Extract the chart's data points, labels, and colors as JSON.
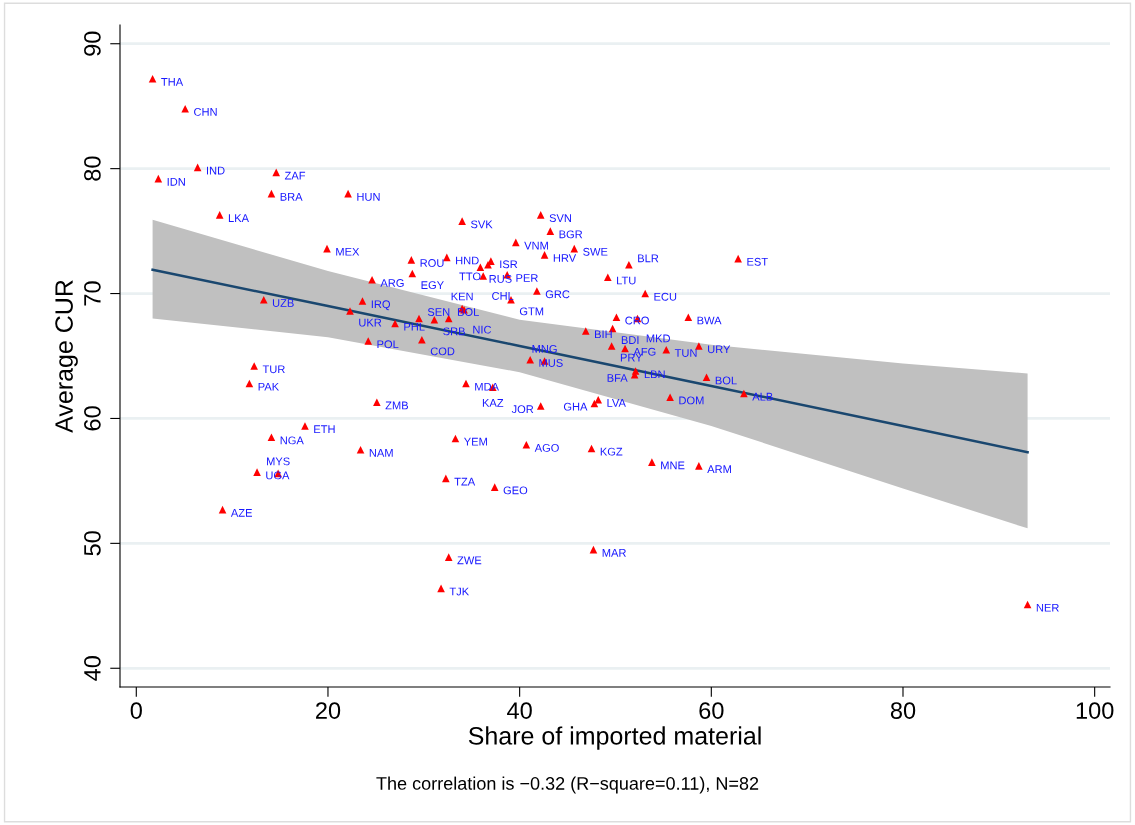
{
  "chart_data": {
    "type": "scatter",
    "xlabel": "Share of imported material",
    "ylabel": "Average CUR",
    "annotations": [
      "The correlation is −0.32 (R−square=0.11), N=82"
    ],
    "xlim": [
      -1.7,
      101.6
    ],
    "ylim": [
      38.5,
      91.5
    ],
    "xticks": [
      0,
      20,
      40,
      60,
      80,
      100
    ],
    "yticks": [
      40,
      50,
      60,
      70,
      80,
      90
    ],
    "grid": "y",
    "legend": false,
    "series": [
      {
        "marker": "triangle",
        "color": "#ff0000",
        "x": [
          1.7,
          5.1,
          6.4,
          2.3,
          14.6,
          14.1,
          22.1,
          8.7,
          19.9,
          28.7,
          32.4,
          28.8,
          24.6,
          34.0,
          42.2,
          43.2,
          39.6,
          42.6,
          45.7,
          37.0,
          36.7,
          35.9,
          36.2,
          38.7,
          41.8,
          39.1,
          49.2,
          51.4,
          62.8,
          53.1,
          50.1,
          52.3,
          57.6,
          46.9,
          49.7,
          49.6,
          51.0,
          55.3,
          58.7,
          41.1,
          42.6,
          52.1,
          52.0,
          59.5,
          63.4,
          55.7,
          48.2,
          47.8,
          42.2,
          40.7,
          47.5,
          53.8,
          58.7,
          23.6,
          22.3,
          27.0,
          29.5,
          31.1,
          32.6,
          34.0,
          34.2,
          24.2,
          29.8,
          34.4,
          37.2,
          25.1,
          12.3,
          11.8,
          17.6,
          14.1,
          23.4,
          33.3,
          12.6,
          14.8,
          32.3,
          37.4,
          9.0,
          32.6,
          31.8,
          47.7,
          93.0,
          13.3
        ],
        "values": [
          87.2,
          84.8,
          80.1,
          79.2,
          79.7,
          78.0,
          78.0,
          76.3,
          73.6,
          72.7,
          72.9,
          71.6,
          71.1,
          75.8,
          76.3,
          75.0,
          74.1,
          73.1,
          73.6,
          72.6,
          72.3,
          72.1,
          71.4,
          71.5,
          70.2,
          69.5,
          71.3,
          72.3,
          72.8,
          70.0,
          68.1,
          68.0,
          68.1,
          67.0,
          67.2,
          65.8,
          65.6,
          65.5,
          65.8,
          64.7,
          64.6,
          63.8,
          63.5,
          63.3,
          62.0,
          61.7,
          61.5,
          61.2,
          61.0,
          57.9,
          57.6,
          56.5,
          56.2,
          69.4,
          68.6,
          67.6,
          68.0,
          67.9,
          68.0,
          68.8,
          68.7,
          66.2,
          66.3,
          62.8,
          62.5,
          61.3,
          64.2,
          62.8,
          59.4,
          58.5,
          57.5,
          58.4,
          55.7,
          55.6,
          55.2,
          54.5,
          52.7,
          48.9,
          46.4,
          49.5,
          45.1,
          69.5
        ],
        "value_labels": [
          "THA",
          "CHN",
          "IND",
          "IDN",
          "ZAF",
          "BRA",
          "HUN",
          "LKA",
          "MEX",
          "ROU",
          "HND",
          "EGY",
          "ARG",
          "SVK",
          "SVN",
          "BGR",
          "VNM",
          "HRV",
          "SWE",
          "ISR",
          "TTO",
          "RUS",
          "CHL",
          "PER",
          "GRC",
          "GTM",
          "LTU",
          "BLR",
          "EST",
          "ECU",
          "CRO",
          "MKD",
          "BWA",
          "BIH",
          "BDI",
          "PRY",
          "AFG",
          "TUN",
          "URY",
          "MUS",
          "MNG",
          "LBN",
          "BFA",
          "BOL",
          "ALB",
          "DOM",
          "LVA",
          "GHA",
          "JOR",
          "AGO",
          "KGZ",
          "MNE",
          "ARM",
          "IRQ",
          "UKR",
          "PHL",
          "SEN",
          "SRB",
          "BOL",
          "KEN",
          "NIC",
          "POL",
          "COD",
          "MDA",
          "KAZ",
          "ZMB",
          "TUR",
          "PAK",
          "ETH",
          "NGA",
          "NAM",
          "YEM",
          "UGA",
          "MYS",
          "TZA",
          "GEO",
          "AZE",
          "ZWE",
          "TJK",
          "MAR",
          "NER",
          "UZB"
        ]
      },
      {
        "type": "line",
        "color": "#1a476f",
        "line_style": "solid",
        "x": [
          1.7,
          20,
          40,
          60,
          80,
          93.0
        ],
        "values": [
          71.9,
          69.0,
          65.8,
          62.6,
          59.4,
          57.3
        ],
        "lower": [
          68.0,
          66.5,
          63.7,
          59.4,
          54.4,
          51.2
        ],
        "upper": [
          75.9,
          71.8,
          67.9,
          65.9,
          64.4,
          63.6
        ]
      }
    ]
  }
}
